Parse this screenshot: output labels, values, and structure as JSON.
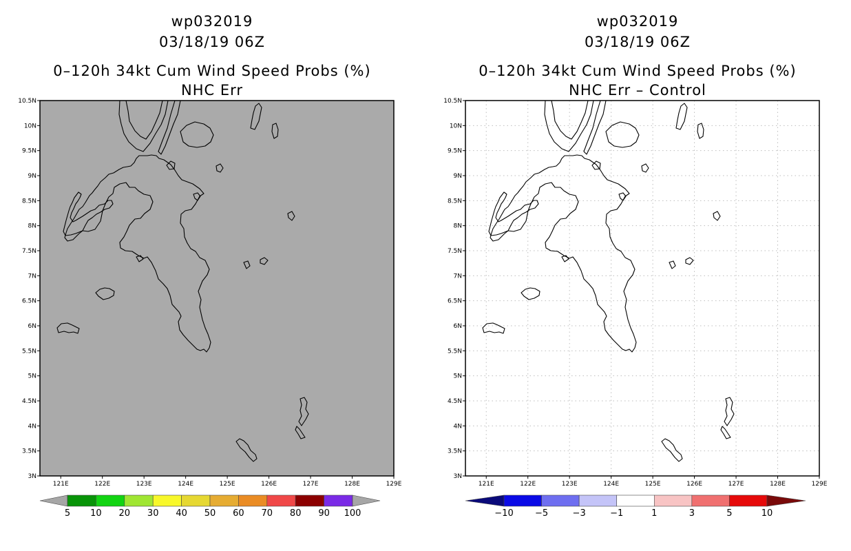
{
  "panels": [
    {
      "id": "left",
      "title_lines": [
        "wp032019",
        "03/18/19 06Z",
        "0–120h 34kt Cum Wind Speed Probs (%)",
        "NHC Err"
      ],
      "background": "#aaaaaa",
      "gridlines": false,
      "colorbar": {
        "labels": [
          "5",
          "10",
          "20",
          "30",
          "40",
          "50",
          "60",
          "70",
          "80",
          "90",
          "100"
        ],
        "colors": [
          "#a6a6a6",
          "#089408",
          "#12d412",
          "#a0e632",
          "#f8f82a",
          "#e6d832",
          "#e6ac32",
          "#ea8c24",
          "#f04848",
          "#8c0000",
          "#7a2ae6",
          "#a6a6a6"
        ]
      }
    },
    {
      "id": "right",
      "title_lines": [
        "wp032019",
        "03/18/19 06Z",
        "0–120h 34kt Cum Wind Speed Probs (%)",
        "NHC Err – Control"
      ],
      "background": "#ffffff",
      "gridlines": true,
      "colorbar": {
        "labels": [
          "−10",
          "−5",
          "−3",
          "−1",
          "1",
          "3",
          "5",
          "10"
        ],
        "colors": [
          "#0a0a7a",
          "#0a0ae6",
          "#6e6ef0",
          "#c4c4f8",
          "#ffffff",
          "#f8c4c4",
          "#f07070",
          "#e60a0a",
          "#7a0a0a"
        ]
      }
    }
  ],
  "axes": {
    "x_ticks": [
      "121E",
      "122E",
      "123E",
      "124E",
      "125E",
      "126E",
      "127E",
      "128E",
      "129E"
    ],
    "y_ticks": [
      "10.5N",
      "10N",
      "9.5N",
      "9N",
      "8.5N",
      "8N",
      "7.5N",
      "7N",
      "6.5N",
      "6N",
      "5.5N",
      "5N",
      "4.5N",
      "4N",
      "3.5N",
      "3N"
    ],
    "lon_range": [
      120.5,
      129.0
    ],
    "lat_range": [
      3.0,
      10.5
    ]
  }
}
